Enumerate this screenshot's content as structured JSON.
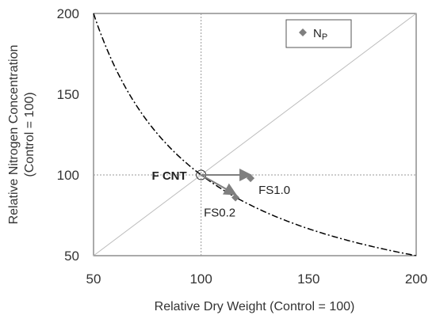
{
  "chart_data": {
    "type": "scatter",
    "xlabel": "Relative Dry Weight (Control = 100)",
    "ylabel_line1": "Relative Nitrogen Concentration",
    "ylabel_line2": "(Control = 100)",
    "xlim": [
      50,
      200
    ],
    "ylim": [
      50,
      200
    ],
    "x_ticks": [
      "50",
      "100",
      "150",
      "200"
    ],
    "y_ticks": [
      "50",
      "100",
      "150",
      "200"
    ],
    "grid": false,
    "reference_lines": {
      "diagonal": "y = x",
      "crosshair": {
        "x": 100,
        "y": 100
      },
      "curve": "y = 10000 / x"
    },
    "legend": {
      "label": "N",
      "subscript": "P",
      "position": "top-right"
    },
    "series": [
      {
        "name": "NP",
        "points": [
          {
            "label": "FS1.0",
            "x": 123,
            "y": 98
          },
          {
            "label": "FS0.2",
            "x": 116,
            "y": 86
          }
        ]
      }
    ],
    "control_point": {
      "label": "F CNT",
      "x": 100,
      "y": 100
    },
    "arrows": [
      {
        "from": [
          100,
          100
        ],
        "to": [
          123,
          100
        ]
      },
      {
        "from": [
          100,
          100
        ],
        "to": [
          116,
          88
        ]
      }
    ]
  }
}
